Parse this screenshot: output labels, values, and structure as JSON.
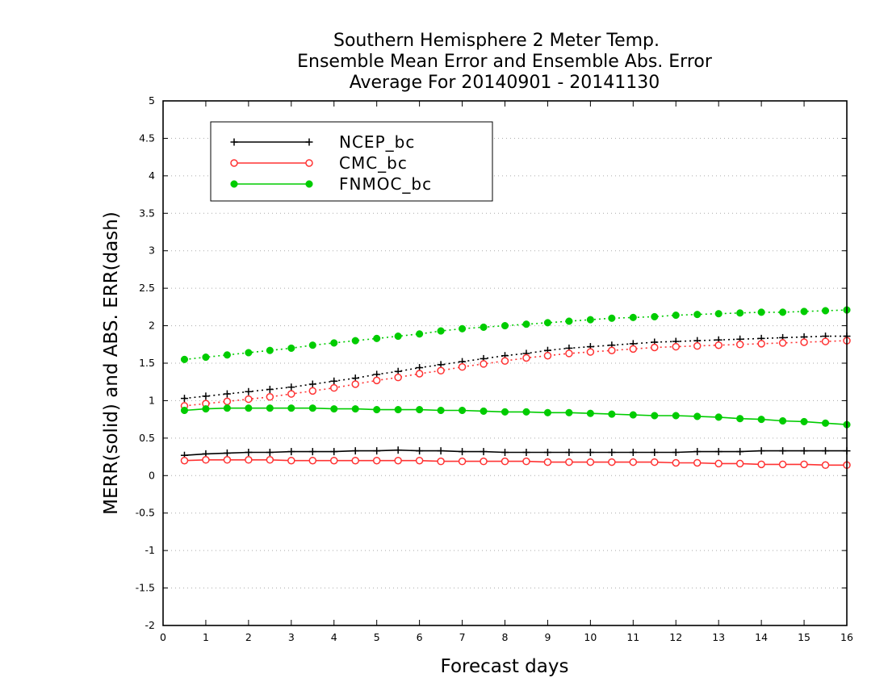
{
  "chart_data": {
    "type": "line",
    "title_lines": [
      "Southern Hemisphere 2 Meter Temp.",
      "Ensemble Mean Error and Ensemble Abs. Error",
      "Average For 20140901 - 20141130"
    ],
    "xlabel": "Forecast days",
    "ylabel": "MERR(solid) and ABS. ERR(dash)",
    "xlim": [
      0,
      16
    ],
    "ylim": [
      -2,
      5
    ],
    "xticks": [
      "0",
      "1",
      "2",
      "3",
      "4",
      "5",
      "6",
      "7",
      "8",
      "9",
      "10",
      "11",
      "12",
      "13",
      "14",
      "15",
      "16"
    ],
    "yticks": [
      "-2",
      "-1.5",
      "-1",
      "-0.5",
      "0",
      "0.5",
      "1",
      "1.5",
      "2",
      "2.5",
      "3",
      "3.5",
      "4",
      "4.5",
      "5"
    ],
    "grid": "horizontal-dotted",
    "legend_position": "top-left",
    "x": [
      0.5,
      1,
      1.5,
      2,
      2.5,
      3,
      3.5,
      4,
      4.5,
      5,
      5.5,
      6,
      6.5,
      7,
      7.5,
      8,
      8.5,
      9,
      9.5,
      10,
      10.5,
      11,
      11.5,
      12,
      12.5,
      13,
      13.5,
      14,
      14.5,
      15,
      15.5,
      16
    ],
    "series": [
      {
        "name": "NCEP_bc",
        "color": "#000000",
        "marker": "plus",
        "merr": [
          0.27,
          0.29,
          0.3,
          0.31,
          0.31,
          0.32,
          0.32,
          0.32,
          0.33,
          0.33,
          0.34,
          0.33,
          0.33,
          0.32,
          0.32,
          0.31,
          0.31,
          0.31,
          0.31,
          0.31,
          0.31,
          0.31,
          0.31,
          0.31,
          0.32,
          0.32,
          0.32,
          0.33,
          0.33,
          0.33,
          0.33,
          0.33
        ],
        "abs_err": [
          1.03,
          1.06,
          1.09,
          1.12,
          1.15,
          1.18,
          1.22,
          1.26,
          1.3,
          1.35,
          1.39,
          1.44,
          1.48,
          1.52,
          1.56,
          1.6,
          1.63,
          1.67,
          1.7,
          1.72,
          1.74,
          1.76,
          1.78,
          1.79,
          1.8,
          1.81,
          1.82,
          1.83,
          1.84,
          1.85,
          1.86,
          1.86
        ]
      },
      {
        "name": "CMC_bc",
        "color": "#ff3333",
        "marker": "open-circle",
        "merr": [
          0.2,
          0.21,
          0.21,
          0.21,
          0.21,
          0.2,
          0.2,
          0.2,
          0.2,
          0.2,
          0.2,
          0.2,
          0.19,
          0.19,
          0.19,
          0.19,
          0.19,
          0.18,
          0.18,
          0.18,
          0.18,
          0.18,
          0.18,
          0.17,
          0.17,
          0.16,
          0.16,
          0.15,
          0.15,
          0.15,
          0.14,
          0.14
        ],
        "abs_err": [
          0.93,
          0.96,
          0.99,
          1.02,
          1.05,
          1.09,
          1.13,
          1.17,
          1.22,
          1.27,
          1.31,
          1.36,
          1.4,
          1.45,
          1.49,
          1.53,
          1.57,
          1.6,
          1.63,
          1.65,
          1.67,
          1.69,
          1.71,
          1.72,
          1.73,
          1.74,
          1.75,
          1.76,
          1.77,
          1.78,
          1.79,
          1.8
        ]
      },
      {
        "name": "FNMOC_bc",
        "color": "#00cc00",
        "marker": "filled-circle",
        "merr": [
          0.87,
          0.89,
          0.9,
          0.9,
          0.9,
          0.9,
          0.9,
          0.89,
          0.89,
          0.88,
          0.88,
          0.88,
          0.87,
          0.87,
          0.86,
          0.85,
          0.85,
          0.84,
          0.84,
          0.83,
          0.82,
          0.81,
          0.8,
          0.8,
          0.79,
          0.78,
          0.76,
          0.75,
          0.73,
          0.72,
          0.7,
          0.68
        ],
        "abs_err": [
          1.55,
          1.58,
          1.61,
          1.64,
          1.67,
          1.7,
          1.74,
          1.77,
          1.8,
          1.83,
          1.86,
          1.89,
          1.93,
          1.96,
          1.98,
          2.0,
          2.02,
          2.04,
          2.06,
          2.08,
          2.1,
          2.11,
          2.12,
          2.14,
          2.15,
          2.16,
          2.17,
          2.18,
          2.18,
          2.19,
          2.2,
          2.21
        ]
      }
    ]
  }
}
